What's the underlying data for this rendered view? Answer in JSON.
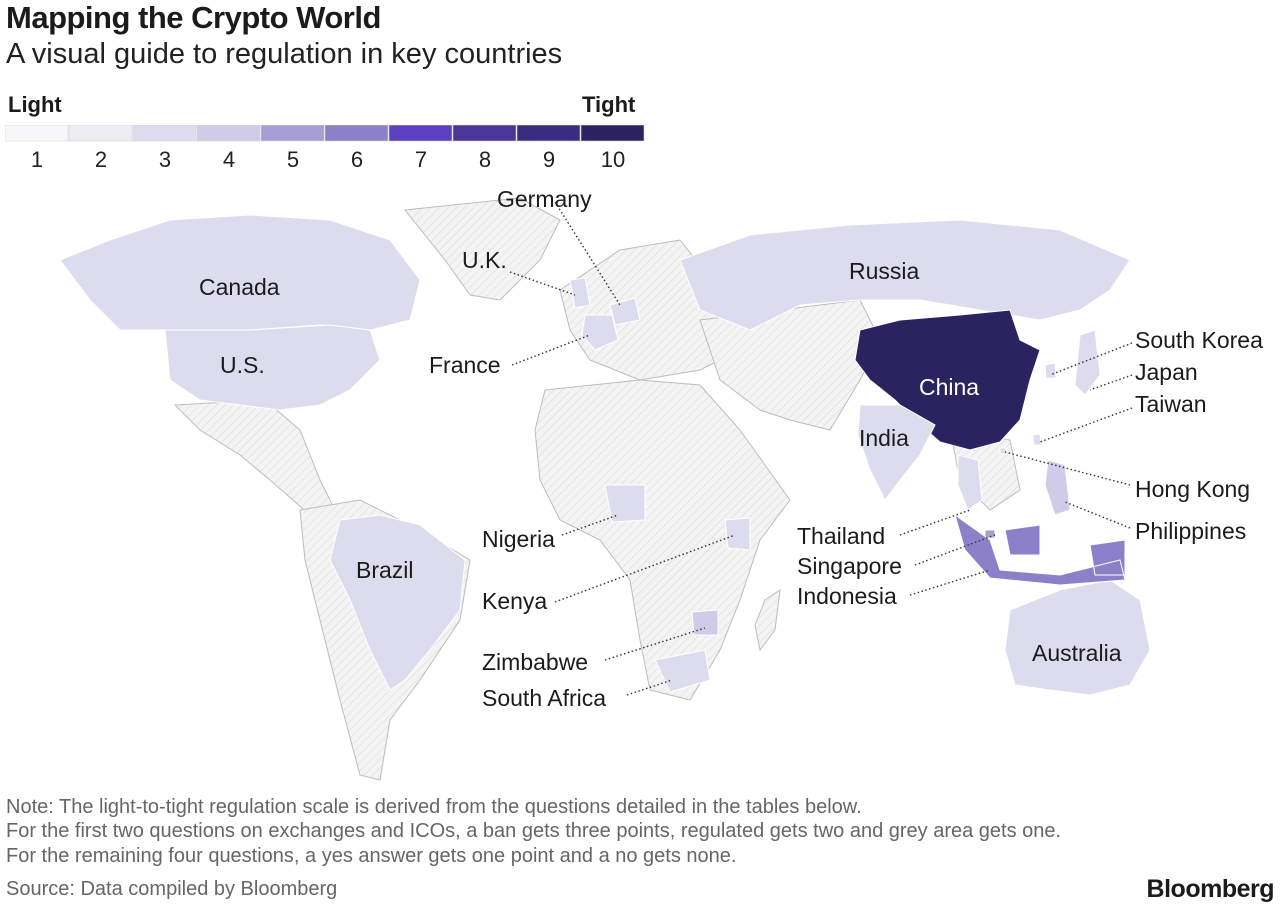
{
  "title": "Mapping the Crypto World",
  "subtitle": "A visual guide to regulation in key countries",
  "scale": {
    "low_label": "Light",
    "high_label": "Tight",
    "steps": [
      "1",
      "2",
      "3",
      "4",
      "5",
      "6",
      "7",
      "8",
      "9",
      "10"
    ],
    "colors": [
      "#f7f7f9",
      "#ececf3",
      "#dddcee",
      "#cfcbe8",
      "#a59fd4",
      "#8c80c9",
      "#5e3fc2",
      "#4a3599",
      "#3a2c80",
      "#2b2260"
    ]
  },
  "colors": {
    "no_data": "#f2f2f2",
    "border": "#bbbbbb",
    "leader": "#333333"
  },
  "countries": [
    {
      "name": "Canada",
      "score": 3
    },
    {
      "name": "U.S.",
      "score": 3
    },
    {
      "name": "Brazil",
      "score": 3
    },
    {
      "name": "Russia",
      "score": 3
    },
    {
      "name": "China",
      "score": 10
    },
    {
      "name": "India",
      "score": 3
    },
    {
      "name": "Australia",
      "score": 3
    },
    {
      "name": "Germany",
      "score": 3
    },
    {
      "name": "U.K.",
      "score": 3
    },
    {
      "name": "France",
      "score": 3
    },
    {
      "name": "Nigeria",
      "score": 3
    },
    {
      "name": "Kenya",
      "score": 3
    },
    {
      "name": "Zimbabwe",
      "score": 4
    },
    {
      "name": "South Africa",
      "score": 3
    },
    {
      "name": "South Korea",
      "score": 3
    },
    {
      "name": "Japan",
      "score": 3
    },
    {
      "name": "Taiwan",
      "score": 3
    },
    {
      "name": "Hong Kong",
      "score": 3
    },
    {
      "name": "Philippines",
      "score": 4
    },
    {
      "name": "Thailand",
      "score": 3
    },
    {
      "name": "Singapore",
      "score": 5
    },
    {
      "name": "Indonesia",
      "score": 6
    }
  ],
  "notes": [
    "Note: The light-to-tight regulation scale is derived from the questions detailed in the tables below.",
    "For the first two questions on exchanges and ICOs, a ban gets three points, regulated gets two and grey area gets one.",
    "For the remaining four questions, a yes answer gets one point and a no gets none."
  ],
  "source": "Source: Data compiled by Bloomberg",
  "brand": "Bloomberg"
}
